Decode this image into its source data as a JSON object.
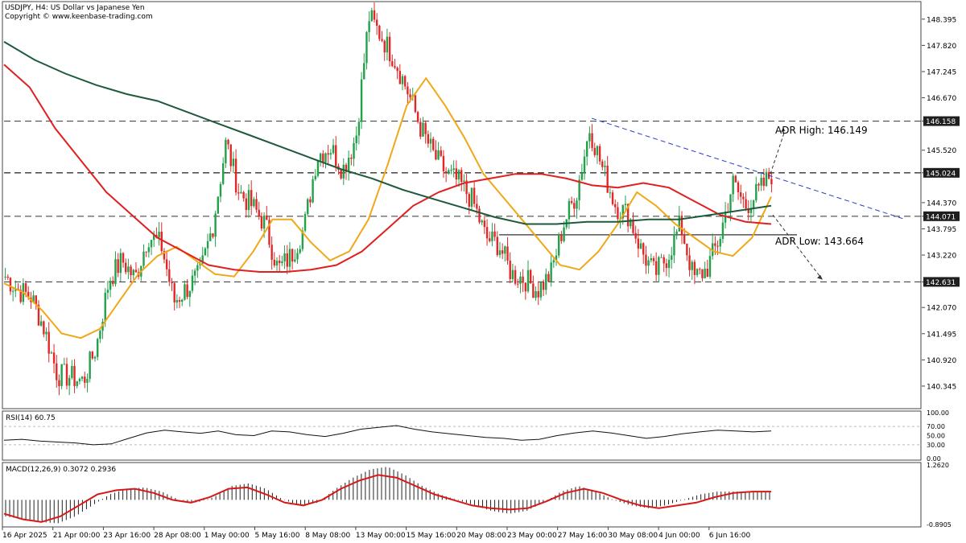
{
  "header": {
    "symbol_line": "USDJPY, H4:  US Dollar vs Japanese Yen",
    "copyright": "Copyright © www.keenbase-trading.com"
  },
  "chart_data": {
    "type": "candlestick",
    "symbol": "USDJPY",
    "timeframe": "H4",
    "ylim": [
      139.85,
      148.78
    ],
    "y_ticks": [
      "148.395",
      "147.820",
      "147.245",
      "146.670",
      "146.158",
      "145.520",
      "145.024",
      "144.370",
      "144.071",
      "143.795",
      "143.220",
      "142.631",
      "142.070",
      "141.495",
      "140.920",
      "140.345"
    ],
    "x_ticks": [
      "16 Apr 2025",
      "21 Apr 00:00",
      "23 Apr 16:00",
      "28 Apr 08:00",
      "1 May 00:00",
      "5 May 16:00",
      "8 May 08:00",
      "13 May 00:00",
      "15 May 16:00",
      "20 May 08:00",
      "23 May 00:00",
      "27 May 16:00",
      "30 May 08:00",
      "4 Jun 00:00",
      "6 Jun 16:00"
    ],
    "price_path": [
      {
        "t": "16 Apr 2025",
        "p": 142.75
      },
      {
        "t": "17 Apr",
        "p": 142.45
      },
      {
        "t": "18 Apr",
        "p": 142.3
      },
      {
        "t": "19 Apr",
        "p": 141.6
      },
      {
        "t": "20 Apr",
        "p": 140.6
      },
      {
        "t": "21 Apr 00:00",
        "p": 140.55
      },
      {
        "t": "21 Apr 12:00",
        "p": 140.45
      },
      {
        "t": "22 Apr",
        "p": 141.2
      },
      {
        "t": "23 Apr",
        "p": 142.7
      },
      {
        "t": "23 Apr 16:00",
        "p": 143.1
      },
      {
        "t": "24 Apr",
        "p": 142.7
      },
      {
        "t": "25 Apr",
        "p": 143.65
      },
      {
        "t": "27 Apr",
        "p": 143.45
      },
      {
        "t": "28 Apr 08:00",
        "p": 142.2
      },
      {
        "t": "29 Apr",
        "p": 142.5
      },
      {
        "t": "30 Apr",
        "p": 142.8
      },
      {
        "t": "1 May 00:00",
        "p": 143.9
      },
      {
        "t": "1 May 12:00",
        "p": 145.7
      },
      {
        "t": "2 May",
        "p": 144.6
      },
      {
        "t": "3 May",
        "p": 144.3
      },
      {
        "t": "4 May",
        "p": 143.9
      },
      {
        "t": "5 May 16:00",
        "p": 142.9
      },
      {
        "t": "6 May",
        "p": 143.2
      },
      {
        "t": "7 May",
        "p": 143.8
      },
      {
        "t": "7 May 12:00",
        "p": 145.4
      },
      {
        "t": "8 May 08:00",
        "p": 145.6
      },
      {
        "t": "9 May",
        "p": 145.1
      },
      {
        "t": "10 May",
        "p": 145.8
      },
      {
        "t": "12 May",
        "p": 148.45
      },
      {
        "t": "13 May 00:00",
        "p": 148.0
      },
      {
        "t": "13 May 12:00",
        "p": 147.5
      },
      {
        "t": "14 May",
        "p": 146.8
      },
      {
        "t": "14 May 12:00",
        "p": 146.0
      },
      {
        "t": "15 May 16:00",
        "p": 145.4
      },
      {
        "t": "16 May",
        "p": 145.0
      },
      {
        "t": "17 May",
        "p": 144.8
      },
      {
        "t": "19 May",
        "p": 144.4
      },
      {
        "t": "20 May 08:00",
        "p": 143.6
      },
      {
        "t": "21 May",
        "p": 143.45
      },
      {
        "t": "22 May",
        "p": 142.8
      },
      {
        "t": "23 May 00:00",
        "p": 142.7
      },
      {
        "t": "23 May 12:00",
        "p": 142.45
      },
      {
        "t": "25 May",
        "p": 142.8
      },
      {
        "t": "26 May",
        "p": 143.9
      },
      {
        "t": "27 May",
        "p": 144.6
      },
      {
        "t": "27 May 12:00",
        "p": 146.0
      },
      {
        "t": "27 May 16:00",
        "p": 145.1
      },
      {
        "t": "28 May",
        "p": 144.3
      },
      {
        "t": "29 May",
        "p": 144.1
      },
      {
        "t": "30 May 08:00",
        "p": 143.3
      },
      {
        "t": "31 May",
        "p": 142.8
      },
      {
        "t": "2 Jun",
        "p": 143.2
      },
      {
        "t": "3 Jun",
        "p": 143.9
      },
      {
        "t": "4 Jun 00:00",
        "p": 142.7
      },
      {
        "t": "4 Jun 12:00",
        "p": 142.9
      },
      {
        "t": "5 Jun",
        "p": 143.6
      },
      {
        "t": "5 Jun 12:00",
        "p": 144.8
      },
      {
        "t": "6 Jun",
        "p": 144.3
      },
      {
        "t": "6 Jun 16:00",
        "p": 144.6
      },
      {
        "t": "7 Jun",
        "p": 145.0
      }
    ],
    "horizontal_levels": [
      {
        "price": 146.158,
        "label": "146.158",
        "style": "dashed"
      },
      {
        "price": 145.024,
        "label": "145.024",
        "style": "dashed"
      },
      {
        "price": 144.071,
        "label": "144.071",
        "style": "dashed"
      },
      {
        "price": 142.631,
        "label": "142.631",
        "style": "dashed"
      }
    ],
    "adr": {
      "high_label": "ADR High: 146.149",
      "low_label": "ADR Low: 143.664",
      "low_line_price": 143.664
    },
    "moving_averages": [
      {
        "color": "#f0a818",
        "path": [
          142.6,
          142.4,
          142.0,
          141.5,
          141.4,
          141.6,
          142.2,
          142.8,
          143.2,
          143.4,
          143.1,
          142.8,
          142.75,
          143.3,
          144.0,
          144.0,
          143.5,
          143.1,
          143.3,
          144.0,
          145.2,
          146.5,
          147.1,
          146.5,
          145.8,
          145.0,
          144.5,
          144.0,
          143.5,
          143.0,
          142.9,
          143.3,
          143.9,
          144.6,
          144.3,
          143.9,
          143.6,
          143.3,
          143.2,
          143.6,
          144.5
        ]
      },
      {
        "color": "#e02020",
        "path": [
          147.4,
          146.9,
          146.0,
          145.3,
          144.6,
          144.1,
          143.6,
          143.3,
          143.0,
          142.9,
          142.85,
          142.85,
          142.9,
          143.0,
          143.3,
          143.8,
          144.3,
          144.6,
          144.8,
          144.9,
          145.0,
          145.0,
          144.9,
          144.75,
          144.7,
          144.8,
          144.7,
          144.4,
          144.1,
          143.95,
          143.9
        ]
      },
      {
        "color": "#1e5a3c",
        "path": [
          147.9,
          147.5,
          147.2,
          146.95,
          146.75,
          146.6,
          146.35,
          146.1,
          145.85,
          145.6,
          145.35,
          145.1,
          144.9,
          144.65,
          144.45,
          144.25,
          144.05,
          143.9,
          143.9,
          143.95,
          143.95,
          144.0,
          144.0,
          144.1,
          144.2,
          144.3
        ]
      }
    ],
    "rsi": {
      "label": "RSI(14) 60.75",
      "value": 60.75,
      "ylim": [
        0,
        100
      ],
      "levels": [
        100.0,
        70.0,
        50.0,
        30.0,
        0.0
      ],
      "tick_labels": [
        "100.00",
        "70.00",
        "50.00",
        "30.00",
        "0.00"
      ],
      "path": [
        40,
        42,
        38,
        36,
        34,
        30,
        32,
        44,
        56,
        62,
        58,
        55,
        60,
        52,
        50,
        60,
        58,
        52,
        48,
        55,
        64,
        68,
        72,
        64,
        58,
        54,
        50,
        46,
        44,
        40,
        42,
        50,
        56,
        60,
        56,
        50,
        44,
        48,
        54,
        58,
        62,
        60,
        58,
        60
      ]
    },
    "macd": {
      "label": "MACD(12,26,9) 0.3072 0.2936",
      "macd": 0.3072,
      "signal": 0.2936,
      "ylim": [
        -0.8905,
        1.262
      ],
      "tick_labels": [
        "1.2620",
        "-0.8905"
      ],
      "histogram": [
        -0.6,
        -0.7,
        -0.8,
        -0.85,
        -0.6,
        -0.2,
        0.2,
        0.4,
        0.45,
        0.3,
        0.0,
        -0.1,
        0.1,
        0.5,
        0.6,
        0.4,
        0.0,
        -0.2,
        -0.1,
        0.4,
        0.8,
        1.1,
        1.2,
        0.9,
        0.5,
        0.2,
        0.0,
        -0.2,
        -0.4,
        -0.5,
        -0.4,
        -0.1,
        0.3,
        0.5,
        0.3,
        0.0,
        -0.2,
        -0.3,
        -0.2,
        0.0,
        0.2,
        0.3,
        0.3,
        0.3,
        0.3
      ],
      "signal_line": [
        -0.5,
        -0.7,
        -0.8,
        -0.6,
        -0.2,
        0.2,
        0.35,
        0.4,
        0.25,
        0.0,
        -0.1,
        0.1,
        0.4,
        0.45,
        0.2,
        -0.1,
        -0.2,
        0.0,
        0.4,
        0.7,
        0.9,
        0.8,
        0.5,
        0.2,
        0.0,
        -0.2,
        -0.3,
        -0.35,
        -0.3,
        -0.05,
        0.25,
        0.4,
        0.25,
        0.0,
        -0.2,
        -0.3,
        -0.2,
        -0.1,
        0.1,
        0.25,
        0.3,
        0.3
      ]
    },
    "colors": {
      "bull": "#22a04a",
      "bear": "#e02828",
      "grid": "#333333",
      "trendline": "#2a3fc0",
      "adr_line": "#333333",
      "axis_label_bg": "#1f1f1f"
    }
  }
}
